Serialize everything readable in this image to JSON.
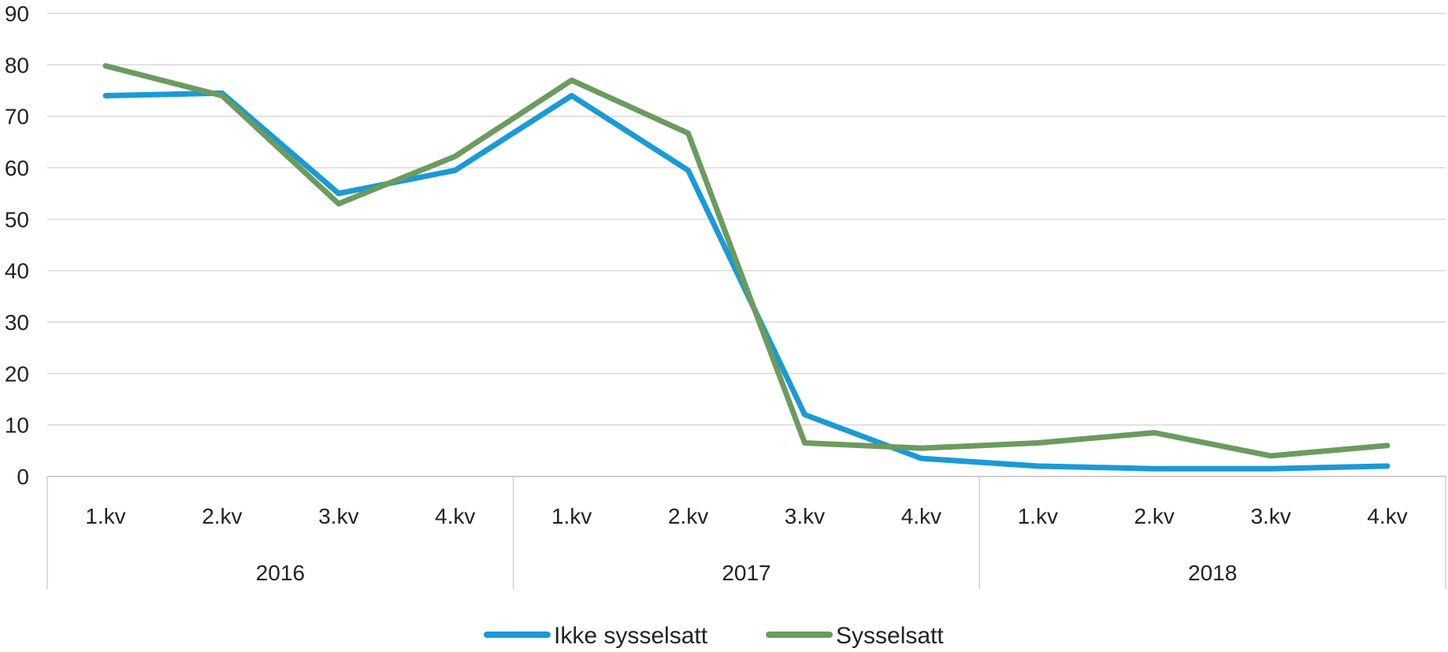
{
  "chart_data": {
    "type": "line",
    "title": "",
    "xlabel": "",
    "ylabel": "",
    "ylim": [
      0,
      90
    ],
    "yticks": [
      0,
      10,
      20,
      30,
      40,
      50,
      60,
      70,
      80,
      90
    ],
    "grid": true,
    "legend_position": "bottom",
    "categories": [
      "1.kv",
      "2.kv",
      "3.kv",
      "4.kv",
      "1.kv",
      "2.kv",
      "3.kv",
      "4.kv",
      "1.kv",
      "2.kv",
      "3.kv",
      "4.kv"
    ],
    "groups": [
      {
        "label": "2016",
        "count": 4
      },
      {
        "label": "2017",
        "count": 4
      },
      {
        "label": "2018",
        "count": 4
      }
    ],
    "series": [
      {
        "name": "Ikke sysselsatt",
        "color": "#1a9ad6",
        "values": [
          74,
          74.5,
          55,
          59.5,
          74,
          59.5,
          12,
          3.5,
          2,
          1.5,
          1.5,
          2
        ]
      },
      {
        "name": "Sysselsatt",
        "color": "#6b9b5e",
        "values": [
          79.8,
          74,
          53,
          62.2,
          77,
          66.7,
          6.5,
          5.5,
          6.5,
          8.5,
          4,
          6
        ]
      }
    ]
  }
}
